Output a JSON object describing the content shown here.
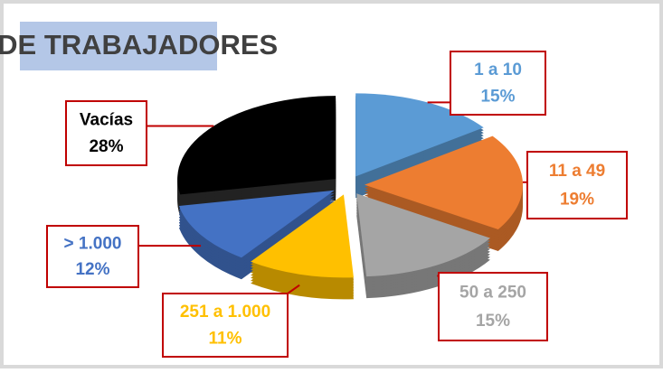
{
  "chart_data": {
    "type": "pie",
    "title": "Nº DE TRABAJADORES",
    "categories": [
      "1 a 10",
      "11 a 49",
      "50 a 250",
      "251 a 1.000",
      "> 1.000",
      "Vacías"
    ],
    "values": [
      15,
      19,
      15,
      11,
      12,
      28
    ],
    "value_labels": [
      "15%",
      "19%",
      "15%",
      "11%",
      "12%",
      "28%"
    ],
    "colors": [
      "#5b9bd5",
      "#ed7d31",
      "#a5a5a5",
      "#ffc000",
      "#4472c4",
      "#000000"
    ]
  }
}
